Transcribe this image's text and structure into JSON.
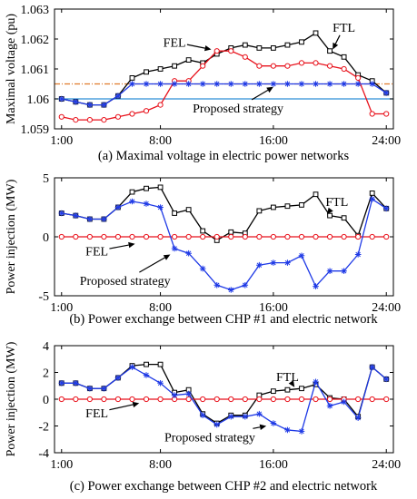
{
  "chart_data": [
    {
      "type": "line",
      "caption": "(a) Maximal voltage in electric power networks",
      "ylabel": "Maximal voltage (pu)",
      "xlabel": "",
      "x": [
        1,
        2,
        3,
        4,
        5,
        6,
        7,
        8,
        9,
        10,
        11,
        12,
        13,
        14,
        15,
        16,
        17,
        18,
        19,
        20,
        21,
        22,
        23,
        24
      ],
      "xlim": [
        0.5,
        24.5
      ],
      "ylim": [
        1.059,
        1.063
      ],
      "xticks": [
        "1:00",
        "8:00",
        "16:00",
        "24:00"
      ],
      "xtick_positions": [
        1,
        8,
        16,
        24
      ],
      "yticks": [
        "1.059",
        "1.06",
        "1.061",
        "1.062",
        "1.063"
      ],
      "ytick_values": [
        1.059,
        1.06,
        1.061,
        1.062,
        1.063
      ],
      "series": [
        {
          "name": "FTL",
          "color": "#000000",
          "marker": "square",
          "values": [
            1.06,
            1.0599,
            1.0598,
            1.0598,
            1.0601,
            1.0607,
            1.0609,
            1.061,
            1.0611,
            1.0613,
            1.0612,
            1.0615,
            1.0617,
            1.0618,
            1.0617,
            1.0617,
            1.0618,
            1.0619,
            1.0622,
            1.0616,
            1.0614,
            1.0608,
            1.0606,
            1.0602
          ]
        },
        {
          "name": "FEL",
          "color": "#e8121c",
          "marker": "circle",
          "values": [
            1.0594,
            1.0593,
            1.0593,
            1.0593,
            1.0594,
            1.0595,
            1.0596,
            1.0598,
            1.0606,
            1.0606,
            1.0611,
            1.0616,
            1.0616,
            1.0614,
            1.0611,
            1.0611,
            1.0611,
            1.0612,
            1.0612,
            1.0611,
            1.061,
            1.0607,
            1.0595,
            1.0595
          ]
        },
        {
          "name": "Proposed strategy",
          "color": "#1f3ae6",
          "marker": "asterisk",
          "values": [
            1.06,
            1.0599,
            1.0598,
            1.0598,
            1.0601,
            1.0605,
            1.0605,
            1.0605,
            1.0605,
            1.0605,
            1.0605,
            1.0605,
            1.0605,
            1.0605,
            1.0605,
            1.0605,
            1.0605,
            1.0605,
            1.0605,
            1.0605,
            1.0605,
            1.0605,
            1.0605,
            1.0602
          ]
        }
      ],
      "reference_lines": [
        {
          "y": 1.0605,
          "color": "#e07a2a",
          "style": "dash-dot"
        },
        {
          "y": 1.06,
          "color": "#2e8fd8",
          "style": "solid"
        }
      ],
      "annotations": [
        {
          "text": "FEL",
          "at": [
            9.0,
            1.0619
          ],
          "arrow_to": [
            11.6,
            1.06165
          ]
        },
        {
          "text": "FTL",
          "at": [
            21.0,
            1.0624
          ],
          "arrow_to": [
            20.2,
            1.06165
          ]
        },
        {
          "text": "Proposed strategy",
          "at": [
            13.5,
            1.0597
          ],
          "arrow_to": [
            16.0,
            1.0604
          ]
        }
      ]
    },
    {
      "type": "line",
      "caption": "(b) Power exchange between CHP #1 and electric network",
      "ylabel": "Power injection (MW)",
      "xlabel": "",
      "x": [
        1,
        2,
        3,
        4,
        5,
        6,
        7,
        8,
        9,
        10,
        11,
        12,
        13,
        14,
        15,
        16,
        17,
        18,
        19,
        20,
        21,
        22,
        23,
        24
      ],
      "xlim": [
        0.5,
        24.5
      ],
      "ylim": [
        -5,
        5
      ],
      "xticks": [
        "1:00",
        "8:00",
        "16:00",
        "24:00"
      ],
      "xtick_positions": [
        1,
        8,
        16,
        24
      ],
      "yticks": [
        "-5",
        "0",
        "5"
      ],
      "ytick_values": [
        -5,
        0,
        5
      ],
      "series": [
        {
          "name": "FTL",
          "color": "#000000",
          "marker": "square",
          "values": [
            2.0,
            1.8,
            1.5,
            1.5,
            2.5,
            3.8,
            4.1,
            4.2,
            2.0,
            2.3,
            0.5,
            -0.3,
            0.4,
            0.3,
            2.2,
            2.5,
            2.6,
            2.7,
            3.6,
            1.8,
            1.6,
            0.1,
            3.7,
            2.4
          ]
        },
        {
          "name": "FEL",
          "color": "#e8121c",
          "marker": "circle",
          "values": [
            0,
            0,
            0,
            0,
            0,
            0,
            0,
            0,
            0,
            0,
            0,
            0,
            0,
            0,
            0,
            0,
            0,
            0,
            0,
            0,
            0,
            0,
            0,
            0
          ]
        },
        {
          "name": "Proposed strategy",
          "color": "#1f3ae6",
          "marker": "asterisk",
          "values": [
            2.0,
            1.8,
            1.5,
            1.5,
            2.5,
            3.0,
            2.8,
            2.5,
            -1.0,
            -1.4,
            -2.7,
            -4.1,
            -4.5,
            -4.1,
            -2.4,
            -2.2,
            -2.2,
            -1.6,
            -4.2,
            -2.9,
            -2.9,
            -1.5,
            3.2,
            2.4
          ]
        }
      ],
      "annotations": [
        {
          "text": "FTL",
          "at": [
            20.5,
            3.0
          ],
          "arrow_to": [
            19.8,
            1.9
          ]
        },
        {
          "text": "FEL",
          "at": [
            3.5,
            -1.2
          ],
          "arrow_to": [
            6.2,
            -0.6
          ]
        },
        {
          "text": "Proposed strategy",
          "at": [
            5.5,
            -3.7
          ],
          "arrow_to": [
            8.7,
            -1.5
          ]
        }
      ]
    },
    {
      "type": "line",
      "caption": "(c) Power exchange between CHP #2 and electric network",
      "ylabel": "Power injection (MW)",
      "xlabel": "",
      "x": [
        1,
        2,
        3,
        4,
        5,
        6,
        7,
        8,
        9,
        10,
        11,
        12,
        13,
        14,
        15,
        16,
        17,
        18,
        19,
        20,
        21,
        22,
        23,
        24
      ],
      "xlim": [
        0.5,
        24.5
      ],
      "ylim": [
        -4,
        4
      ],
      "xticks": [
        "1:00",
        "8:00",
        "16:00",
        "24:00"
      ],
      "xtick_positions": [
        1,
        8,
        16,
        24
      ],
      "yticks": [
        "-4",
        "-2",
        "0",
        "2",
        "4"
      ],
      "ytick_values": [
        -4,
        -2,
        0,
        2,
        4
      ],
      "series": [
        {
          "name": "FTL",
          "color": "#000000",
          "marker": "square",
          "values": [
            1.2,
            1.2,
            0.8,
            0.8,
            1.6,
            2.5,
            2.6,
            2.6,
            0.5,
            0.7,
            -1.1,
            -1.8,
            -1.2,
            -1.2,
            0.3,
            0.6,
            0.7,
            0.8,
            1.1,
            0.1,
            0.0,
            -1.3,
            2.4,
            1.5
          ]
        },
        {
          "name": "FEL",
          "color": "#e8121c",
          "marker": "circle",
          "values": [
            0,
            0,
            0,
            0,
            0,
            0,
            0,
            0,
            0,
            0,
            0,
            0,
            0,
            0,
            0,
            0,
            0,
            0,
            0,
            0,
            0,
            0,
            0,
            0
          ]
        },
        {
          "name": "Proposed strategy",
          "color": "#1f3ae6",
          "marker": "asterisk",
          "values": [
            1.2,
            1.2,
            0.8,
            0.8,
            1.6,
            2.4,
            1.8,
            1.2,
            0.3,
            0.4,
            -1.2,
            -1.9,
            -1.3,
            -1.3,
            -1.1,
            -1.8,
            -2.3,
            -2.4,
            1.3,
            -0.5,
            -0.2,
            -1.4,
            2.4,
            1.5
          ]
        }
      ],
      "annotations": [
        {
          "text": "FTL",
          "at": [
            17.0,
            1.7
          ],
          "arrow_to": [
            17.5,
            0.9
          ]
        },
        {
          "text": "FEL",
          "at": [
            3.5,
            -1.0
          ],
          "arrow_to": [
            6.5,
            -0.3
          ]
        },
        {
          "text": "Proposed strategy",
          "at": [
            11.5,
            -2.8
          ],
          "arrow_to": [
            15.5,
            -2.0
          ]
        }
      ]
    }
  ]
}
